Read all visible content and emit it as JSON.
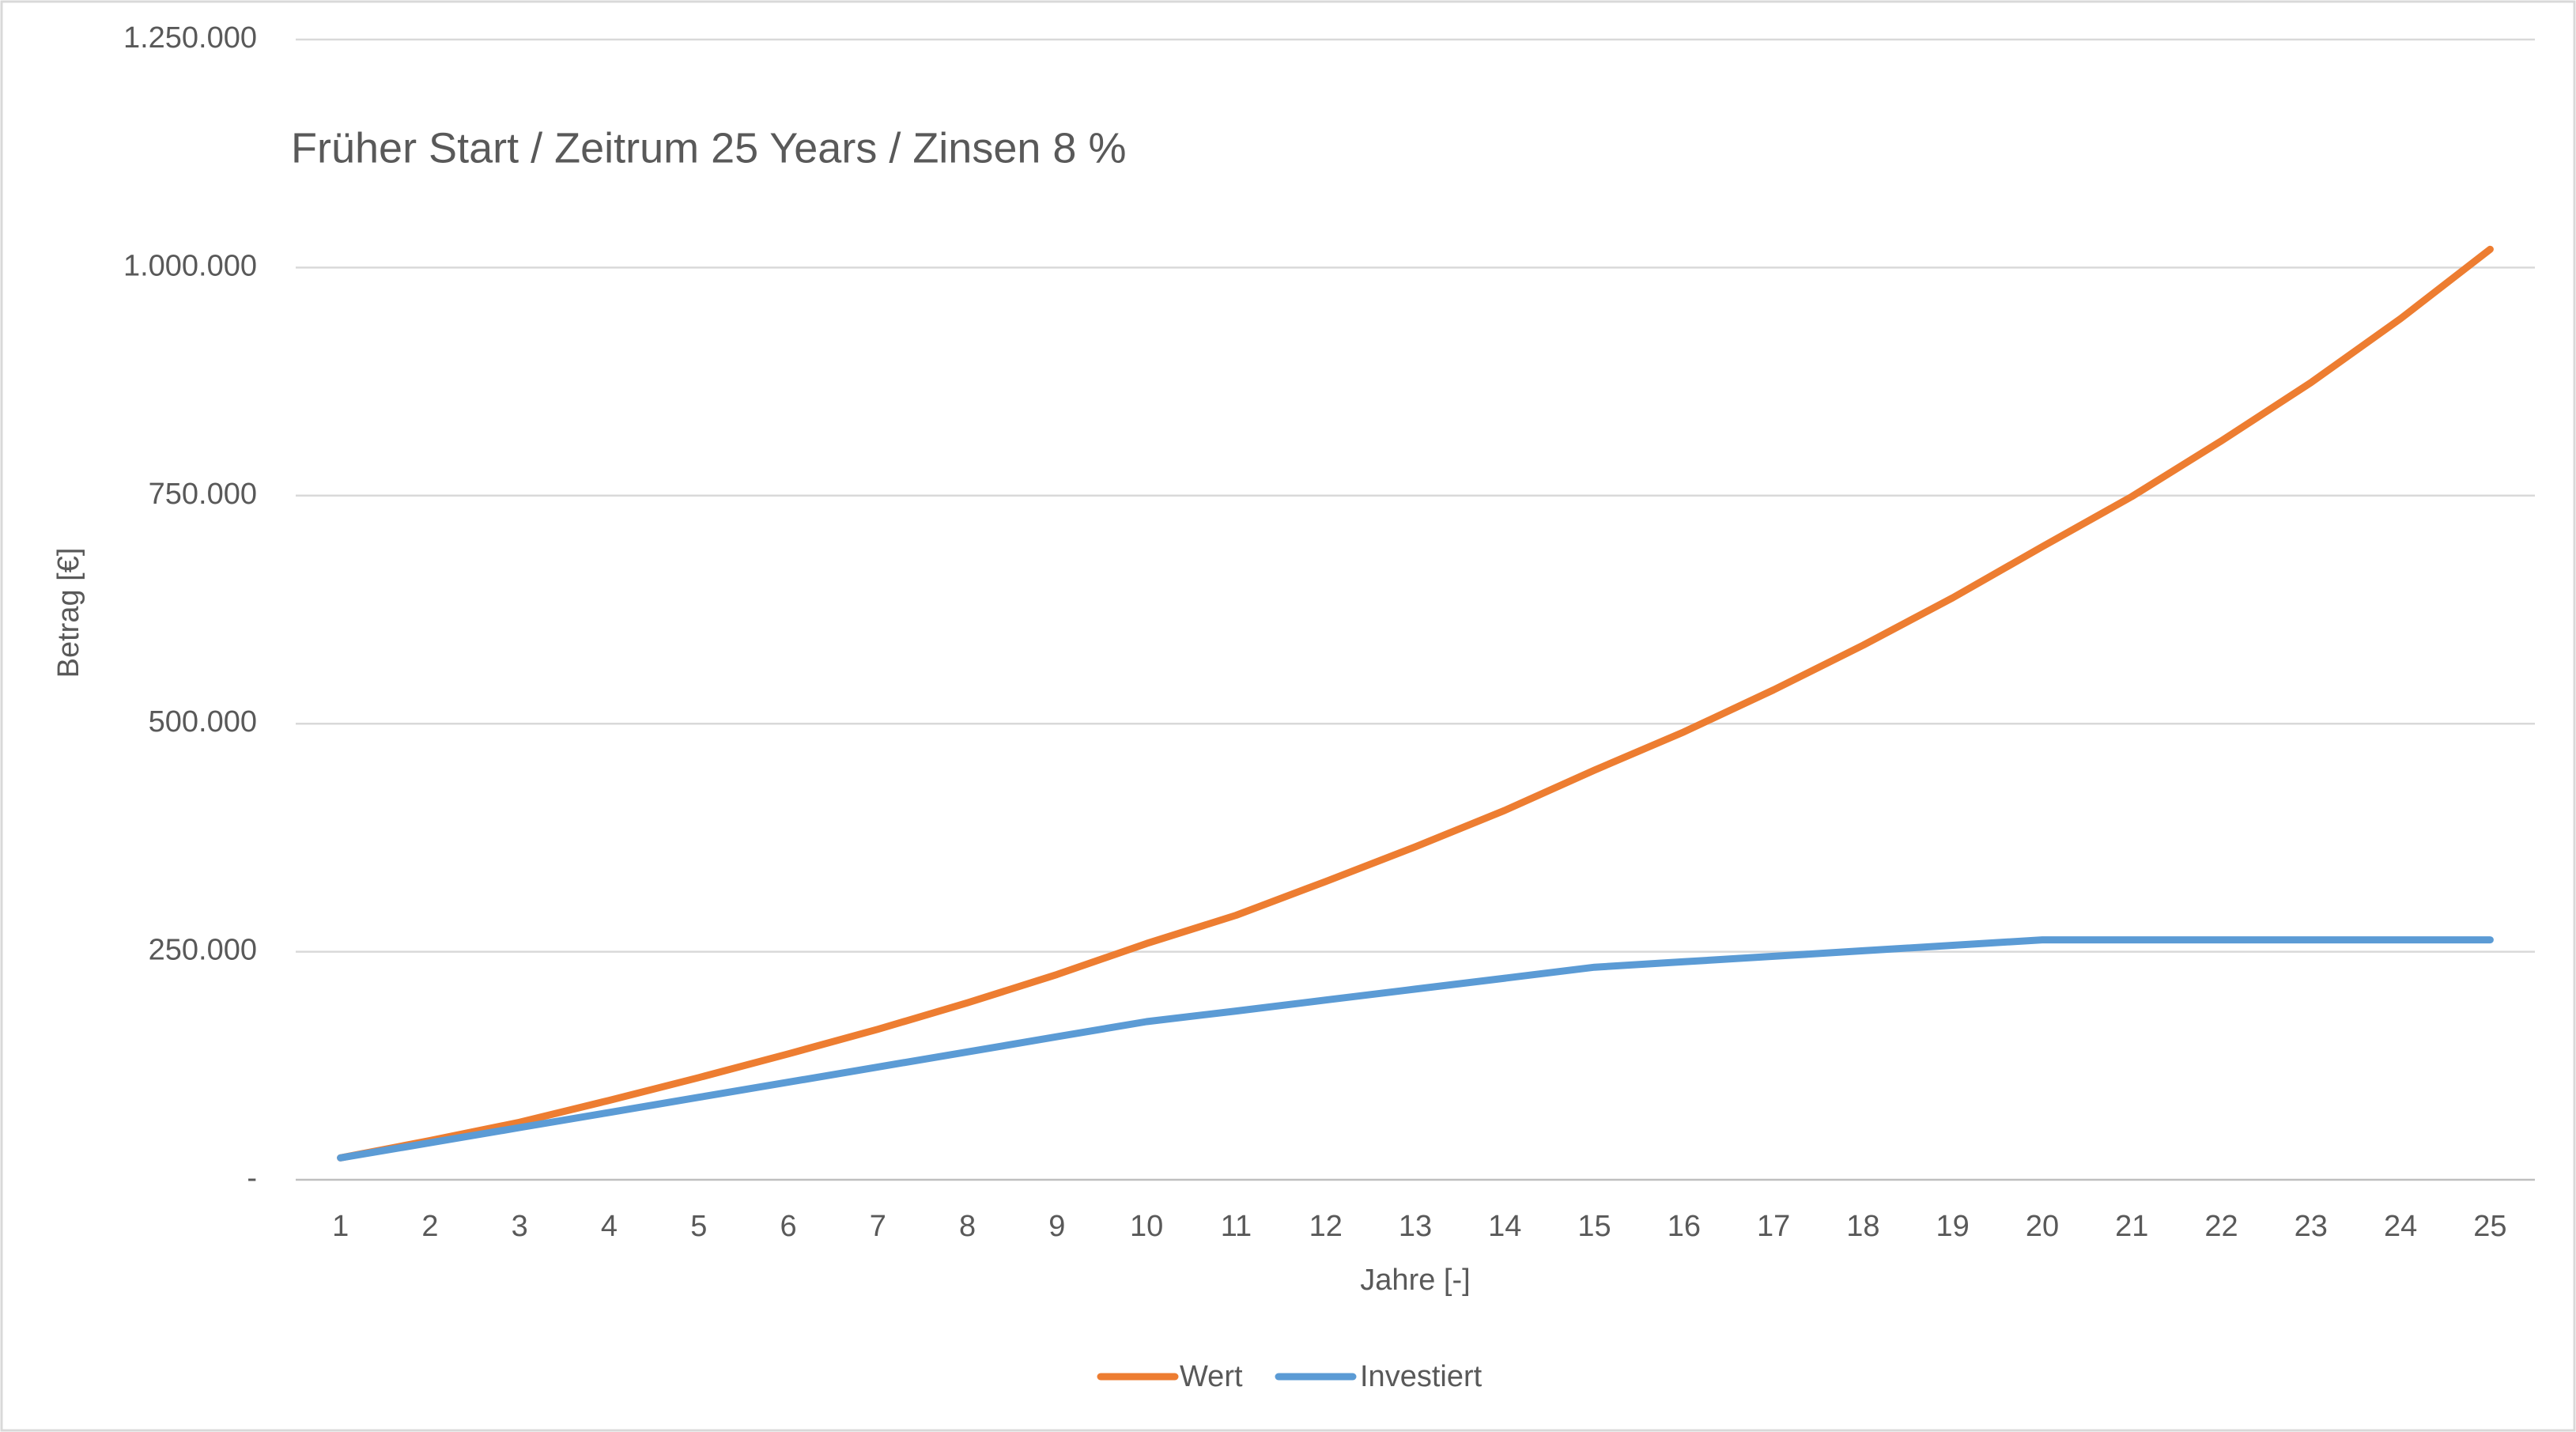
{
  "chart_data": {
    "type": "line",
    "title": "Früher Start / Zeitrum 25 Years / Zinsen 8 %",
    "x_label": "Jahre [-]",
    "y_label": "Betrag [€]",
    "categories": [
      "1",
      "2",
      "3",
      "4",
      "5",
      "6",
      "7",
      "8",
      "9",
      "10",
      "11",
      "12",
      "13",
      "14",
      "15",
      "16",
      "17",
      "18",
      "19",
      "20",
      "21",
      "22",
      "23",
      "24",
      "25"
    ],
    "series": [
      {
        "name": "Wert",
        "color": "#ED7D31",
        "values": [
          24000,
          43000,
          63000,
          87000,
          112000,
          138000,
          165000,
          194000,
          225000,
          259000,
          290000,
          327000,
          365000,
          405000,
          449000,
          491000,
          537000,
          586000,
          638000,
          694000,
          749000,
          810000,
          874000,
          944000,
          1020000
        ]
      },
      {
        "name": "Investiert",
        "color": "#5B9BD5",
        "values": [
          24000,
          40600,
          57200,
          73800,
          90400,
          107000,
          123600,
          140200,
          156800,
          173400,
          185000,
          197000,
          209000,
          221000,
          233000,
          239000,
          245000,
          251000,
          257000,
          263000,
          263000,
          263000,
          263000,
          263000,
          263000
        ]
      }
    ],
    "ylim": [
      0,
      1250000
    ],
    "yticks": [
      {
        "value": 0,
        "label": "-"
      },
      {
        "value": 250000,
        "label": "250.000"
      },
      {
        "value": 500000,
        "label": "500.000"
      },
      {
        "value": 750000,
        "label": "750.000"
      },
      {
        "value": 1000000,
        "label": "1.000.000"
      },
      {
        "value": 1250000,
        "label": "1.250.000"
      }
    ],
    "grid": true,
    "legend": "bottom"
  }
}
